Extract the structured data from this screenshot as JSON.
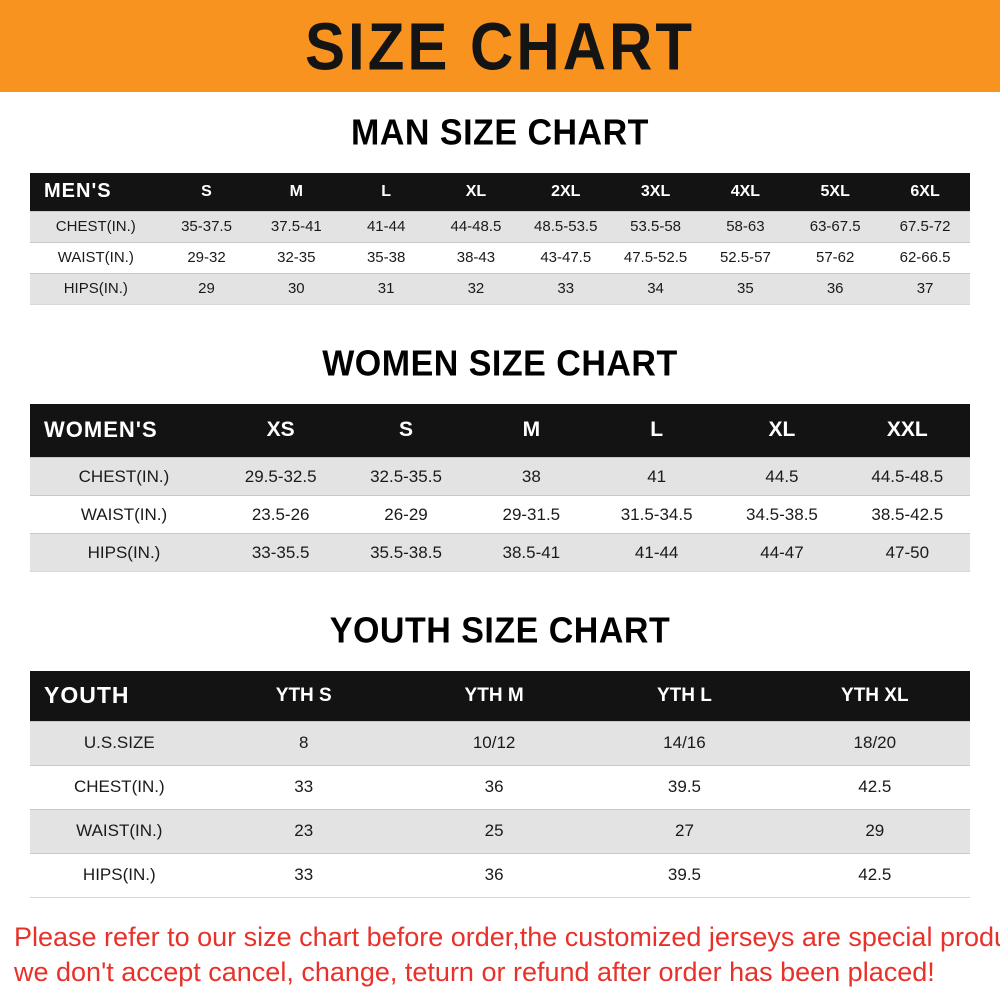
{
  "banner": {
    "title": "SIZE CHART"
  },
  "colors": {
    "banner_bg": "#f7931e",
    "table_header_bg": "#131313",
    "row_stripe": "#e3e3e3",
    "notice_text": "#e8312a"
  },
  "sections": [
    {
      "id": "men",
      "heading": "MAN SIZE CHART",
      "table": {
        "header_label": "MEN'S",
        "columns": [
          "S",
          "M",
          "L",
          "XL",
          "2XL",
          "3XL",
          "4XL",
          "5XL",
          "6XL"
        ],
        "rows": [
          {
            "label": "CHEST(IN.)",
            "values": [
              "35-37.5",
              "37.5-41",
              "41-44",
              "44-48.5",
              "48.5-53.5",
              "53.5-58",
              "58-63",
              "63-67.5",
              "67.5-72"
            ]
          },
          {
            "label": "WAIST(IN.)",
            "values": [
              "29-32",
              "32-35",
              "35-38",
              "38-43",
              "43-47.5",
              "47.5-52.5",
              "52.5-57",
              "57-62",
              "62-66.5"
            ]
          },
          {
            "label": "HIPS(IN.)",
            "values": [
              "29",
              "30",
              "31",
              "32",
              "33",
              "34",
              "35",
              "36",
              "37"
            ]
          }
        ]
      }
    },
    {
      "id": "women",
      "heading": "WOMEN SIZE CHART",
      "table": {
        "header_label": "WOMEN'S",
        "columns": [
          "XS",
          "S",
          "M",
          "L",
          "XL",
          "XXL"
        ],
        "rows": [
          {
            "label": "CHEST(IN.)",
            "values": [
              "29.5-32.5",
              "32.5-35.5",
              "38",
              "41",
              "44.5",
              "44.5-48.5"
            ]
          },
          {
            "label": "WAIST(IN.)",
            "values": [
              "23.5-26",
              "26-29",
              "29-31.5",
              "31.5-34.5",
              "34.5-38.5",
              "38.5-42.5"
            ]
          },
          {
            "label": "HIPS(IN.)",
            "values": [
              "33-35.5",
              "35.5-38.5",
              "38.5-41",
              "41-44",
              "44-47",
              "47-50"
            ]
          }
        ]
      }
    },
    {
      "id": "youth",
      "heading": "YOUTH SIZE CHART",
      "table": {
        "header_label": "YOUTH",
        "columns": [
          "YTH S",
          "YTH M",
          "YTH L",
          "YTH XL"
        ],
        "rows": [
          {
            "label": "U.S.SIZE",
            "values": [
              "8",
              "10/12",
              "14/16",
              "18/20"
            ]
          },
          {
            "label": "CHEST(IN.)",
            "values": [
              "33",
              "36",
              "39.5",
              "42.5"
            ]
          },
          {
            "label": "WAIST(IN.)",
            "values": [
              "23",
              "25",
              "27",
              "29"
            ]
          },
          {
            "label": "HIPS(IN.)",
            "values": [
              "33",
              "36",
              "39.5",
              "42.5"
            ]
          }
        ]
      }
    }
  ],
  "notice": {
    "line1": "Please refer to our size chart before order,the customized jerseys are special products,",
    "line2": "we don't accept cancel, change, teturn or refund after order has been placed!"
  }
}
